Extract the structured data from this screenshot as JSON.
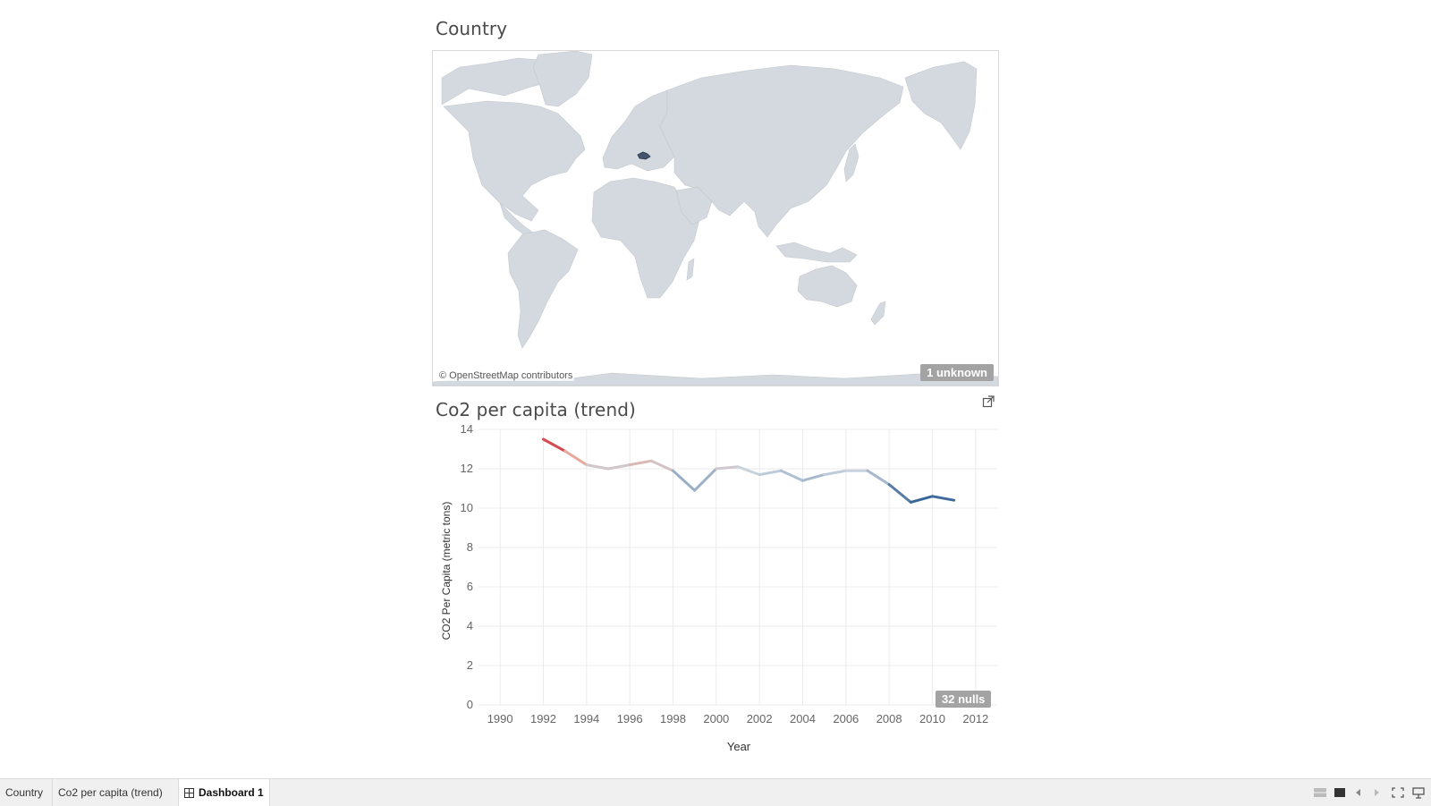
{
  "map_view": {
    "title": "Country",
    "credit": "© OpenStreetMap contributors",
    "unknown_badge": "1 unknown",
    "highlighted_country": "Czech Republic",
    "colors": {
      "land": "#d3d9de",
      "ocean": "#ffffff",
      "highlight": "#44566d"
    }
  },
  "trend_view": {
    "title": "Co2 per capita (trend)",
    "nulls_badge": "32 nulls",
    "popout_icon": "popout-icon"
  },
  "chart_data": {
    "type": "line",
    "title": "",
    "xlabel": "Year",
    "ylabel": "CO2 Per Capita (metric tons)",
    "xlim": [
      1989,
      2013
    ],
    "ylim": [
      0,
      14
    ],
    "x_ticks": [
      1990,
      1992,
      1994,
      1996,
      1998,
      2000,
      2002,
      2004,
      2006,
      2008,
      2010,
      2012
    ],
    "y_ticks": [
      0,
      2,
      4,
      6,
      8,
      10,
      12,
      14
    ],
    "grid": true,
    "color_scale": {
      "low": "#2b5b91",
      "mid": "#c8d3de",
      "high": "#c7182b"
    },
    "series": [
      {
        "x": [
          1992,
          1993,
          1994,
          1995,
          1996,
          1997,
          1998,
          1999,
          2000,
          2001,
          2002,
          2003,
          2004,
          2005,
          2006,
          2007,
          2008,
          2009,
          2010,
          2011
        ],
        "values": [
          13.5,
          12.9,
          12.2,
          12.0,
          12.2,
          12.4,
          11.9,
          10.9,
          12.0,
          12.1,
          11.7,
          11.9,
          11.4,
          11.7,
          11.9,
          11.9,
          11.2,
          10.3,
          10.6,
          10.4
        ]
      }
    ]
  },
  "tabs": [
    {
      "label": "Country"
    },
    {
      "label": "Co2 per capita (trend)"
    },
    {
      "label": "Dashboard 1"
    }
  ],
  "controls": [
    "grid-view-icon",
    "filmstrip-icon",
    "previous-icon",
    "next-icon",
    "fullscreen-icon",
    "presentation-icon"
  ]
}
